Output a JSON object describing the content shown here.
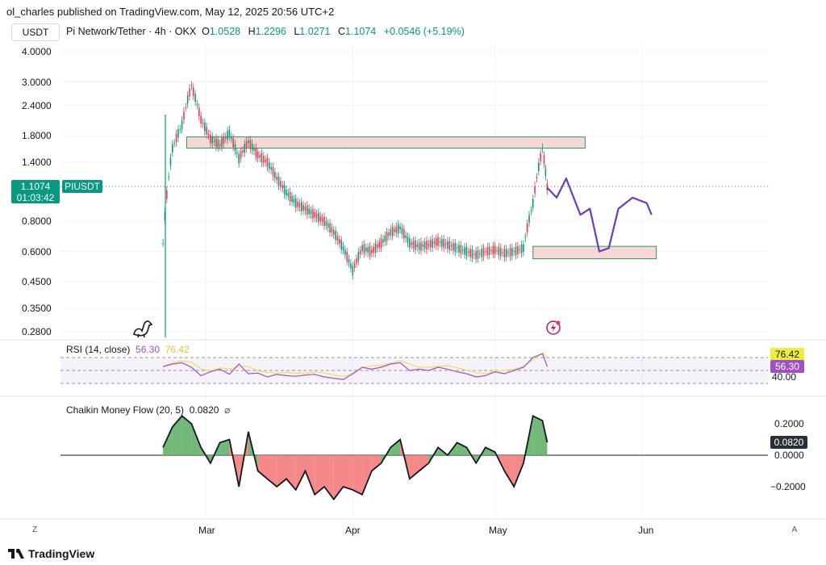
{
  "header": "ol_charles published on TradingView.com, May 12, 2025 20:56 UTC+2",
  "symbol_button": "USDT",
  "legend": {
    "pair": "Pi Network/Tether · 4h · OKX",
    "o_label": "O",
    "o": "1.0528",
    "h_label": "H",
    "h": "1.2296",
    "l_label": "L",
    "l": "1.0271",
    "c_label": "C",
    "c": "1.1074",
    "change": "+0.0546 (+5.19%)"
  },
  "price_axis_labels": [
    "4.0000",
    "3.0000",
    "2.4000",
    "1.8000",
    "1.4000",
    "0.8000",
    "0.6000",
    "0.4500",
    "0.3500",
    "0.2800"
  ],
  "last_price": {
    "value": "1.1074",
    "countdown": "01:03:42",
    "ticker": "PIUSDT"
  },
  "rsi": {
    "title": "RSI (14, close)",
    "rsi_value": "56.30",
    "ma_value": "76.42",
    "tag_ma": "76.42",
    "tag_rsi": "56.30",
    "level_label": "40.00"
  },
  "cmf": {
    "title": "Chaikin Money Flow (20, 5)",
    "value": "0.0820",
    "setting_icon": "⌀",
    "axis_labels": [
      "0.2000",
      "0.0000",
      "−0.2000"
    ],
    "tag": "0.0820"
  },
  "time_axis": [
    "Mar",
    "Apr",
    "May",
    "Jun"
  ],
  "corners": {
    "left": "Z",
    "right": "A"
  },
  "footer_brand": "TradingView",
  "colors": {
    "up": "#089981",
    "down": "#f23645",
    "zone_fill": "#f8d7d9",
    "zone_border": "#2e9e4b",
    "projection": "#6a3fb5",
    "rsi_line": "#a34fc4",
    "rsi_ma": "#e8e05a",
    "cmf_pos": "#63b06a",
    "cmf_neg": "#f47b7b"
  },
  "chart_data": {
    "type": "line",
    "title": "Pi Network/Tether · 4h · OKX",
    "x": [
      "2025-02-20",
      "2025-02-22",
      "2025-02-24",
      "2025-02-26",
      "2025-02-28",
      "2025-03-02",
      "2025-03-04",
      "2025-03-06",
      "2025-03-08",
      "2025-03-10",
      "2025-03-12",
      "2025-03-14",
      "2025-03-16",
      "2025-03-18",
      "2025-03-20",
      "2025-03-22",
      "2025-03-24",
      "2025-03-26",
      "2025-03-28",
      "2025-03-30",
      "2025-04-01",
      "2025-04-03",
      "2025-04-05",
      "2025-04-07",
      "2025-04-09",
      "2025-04-11",
      "2025-04-13",
      "2025-04-15",
      "2025-04-17",
      "2025-04-19",
      "2025-04-21",
      "2025-04-23",
      "2025-04-25",
      "2025-04-27",
      "2025-04-29",
      "2025-05-01",
      "2025-05-03",
      "2025-05-05",
      "2025-05-07",
      "2025-05-09",
      "2025-05-11",
      "2025-05-12"
    ],
    "series": [
      {
        "values": [
          0.65,
          1.6,
          2.0,
          2.9,
          2.1,
          1.75,
          1.65,
          1.85,
          1.45,
          1.7,
          1.5,
          1.4,
          1.2,
          1.05,
          0.95,
          0.9,
          0.85,
          0.8,
          0.72,
          0.62,
          0.5,
          0.62,
          0.6,
          0.65,
          0.72,
          0.75,
          0.65,
          0.63,
          0.64,
          0.66,
          0.64,
          0.62,
          0.6,
          0.58,
          0.6,
          0.61,
          0.59,
          0.6,
          0.62,
          0.95,
          1.6,
          1.1074
        ]
      },
      {
        "values": [
          null,
          null,
          null,
          null,
          null,
          null,
          null,
          null,
          null,
          null,
          null,
          null,
          null,
          null,
          null,
          null,
          null,
          null,
          null,
          null,
          null,
          null,
          null,
          null,
          null,
          null,
          null,
          null,
          null,
          null,
          null,
          null,
          null,
          null,
          null,
          null,
          null,
          null,
          null,
          null,
          null,
          1.1074
        ]
      }
    ],
    "projection": {
      "dates": [
        "2025-05-12",
        "2025-05-14",
        "2025-05-16",
        "2025-05-19",
        "2025-05-21",
        "2025-05-23",
        "2025-05-25",
        "2025-05-27",
        "2025-05-30",
        "2025-06-02",
        "2025-06-03"
      ],
      "values": [
        1.1,
        1.0,
        1.2,
        0.85,
        0.9,
        0.6,
        0.62,
        0.9,
        1.0,
        0.95,
        0.85
      ]
    },
    "zones": [
      {
        "from": "2025-02-25",
        "to": "2025-05-20",
        "low": 1.6,
        "high": 1.78
      },
      {
        "from": "2025-05-09",
        "to": "2025-06-04",
        "low": 0.56,
        "high": 0.63
      }
    ],
    "y_scale": "log",
    "ylim": [
      0.26,
      4.4
    ],
    "grid": true,
    "rsi": {
      "upper": 70,
      "middle": 50,
      "lower": 30,
      "values": [
        56,
        60,
        62,
        55,
        42,
        48,
        52,
        44,
        60,
        45,
        46,
        40,
        44,
        42,
        41,
        43,
        44,
        40,
        38,
        36,
        45,
        55,
        52,
        55,
        60,
        62,
        50,
        52,
        50,
        55,
        52,
        48,
        45,
        40,
        42,
        48,
        45,
        50,
        55,
        70,
        76,
        56.3
      ]
    },
    "cmf_values": [
      0.05,
      0.18,
      0.25,
      0.2,
      0.05,
      -0.05,
      0.08,
      0.1,
      -0.2,
      0.15,
      -0.1,
      -0.15,
      -0.2,
      -0.15,
      -0.22,
      -0.1,
      -0.25,
      -0.2,
      -0.28,
      -0.2,
      -0.22,
      -0.25,
      -0.1,
      -0.05,
      0.05,
      0.1,
      -0.15,
      -0.1,
      -0.05,
      0.05,
      0.0,
      0.08,
      0.05,
      -0.05,
      0.05,
      0.02,
      -0.1,
      -0.2,
      -0.05,
      0.25,
      0.22,
      0.082
    ]
  }
}
